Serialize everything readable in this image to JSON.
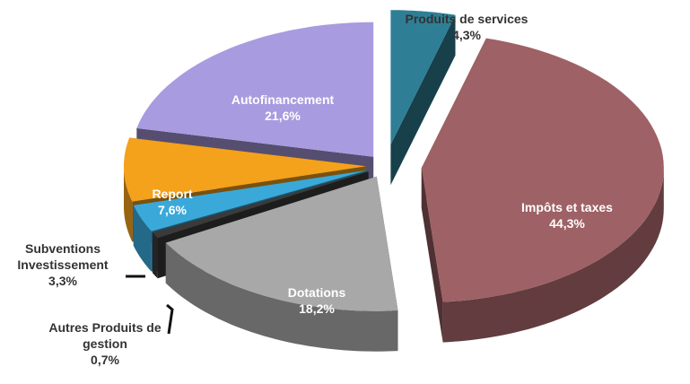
{
  "chart_data": {
    "type": "pie",
    "categories": [
      "Produits de services",
      "Impôts et taxes",
      "Dotations",
      "Autres Produits de gestion",
      "Subventions Investissement",
      "Report",
      "Autofinancement"
    ],
    "values": [
      4.3,
      44.3,
      18.2,
      0.7,
      3.3,
      7.6,
      21.6
    ],
    "value_labels": [
      "4,3%",
      "44,3%",
      "18,2%",
      "0,7%",
      "3,3%",
      "7,6%",
      "21,6%"
    ],
    "colors": [
      "#2e7f96",
      "#9e6165",
      "#a8a8a8",
      "#3a3a3a",
      "#3aa9d9",
      "#f4a11b",
      "#a99be0"
    ]
  }
}
